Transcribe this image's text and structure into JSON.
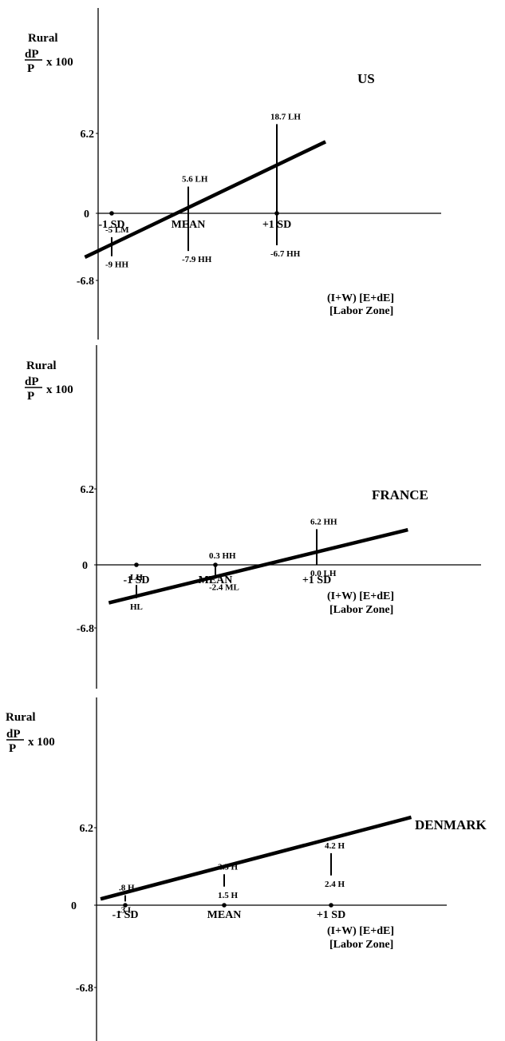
{
  "y_label": {
    "line1": "Rural",
    "numerator": "dP",
    "denominator": "P",
    "suffix": "x 100"
  },
  "x_label": {
    "line1": "(I+W) [E+dE]",
    "line2": "[Labor Zone]"
  },
  "chart_data": [
    {
      "type": "line",
      "title": "US",
      "categories": [
        "-1 SD",
        "MEAN",
        "+1 SD"
      ],
      "y_ticks": [
        "6.2",
        "0",
        "-6.8"
      ],
      "ylim": [
        -12,
        22
      ],
      "regression_line": {
        "x": [
          -1.35,
          1.55
        ],
        "y": [
          -9.2,
          15.0
        ]
      },
      "points": [
        {
          "x": -1,
          "y": 0
        },
        {
          "x": 1,
          "y": 0
        }
      ],
      "ranges": [
        {
          "x": -1,
          "high": -5,
          "low": -9,
          "high_label": "-5 LM",
          "low_label": "-9 HH"
        },
        {
          "x": 0,
          "high": 5.6,
          "low": -7.9,
          "high_label": "5.6 LH",
          "low_label": "-7.9 HH"
        },
        {
          "x": 1,
          "high": 18.7,
          "low": -6.7,
          "high_label": "18.7 LH",
          "low_label": "-6.7 HH"
        }
      ]
    },
    {
      "type": "line",
      "title": "FRANCE",
      "categories": [
        "-1 SD",
        "MEAN",
        "+1 SD"
      ],
      "y_ticks": [
        "6.2",
        "0",
        "-6.8"
      ],
      "regression_line": {
        "x": [
          -1.35,
          1.9
        ],
        "y": [
          -6.6,
          6.1
        ]
      },
      "points": [
        {
          "x": -1,
          "y": 0
        },
        {
          "x": 0,
          "y": 0
        }
      ],
      "ranges": [
        {
          "x": -1,
          "high": -3.5,
          "low": -5.8,
          "high_label": "LH",
          "low_label": "HL"
        },
        {
          "x": 0,
          "high": 0.3,
          "low": -2.4,
          "high_label": "0.3 HH",
          "low_label": "-2.4 ML"
        },
        {
          "x": 1,
          "high": 6.2,
          "low": 0,
          "high_label": "6.2 HH",
          "low_label": "0.0 LH"
        }
      ]
    },
    {
      "type": "line",
      "title": "DENMARK",
      "categories": [
        "-1 SD",
        "MEAN",
        "+1 SD"
      ],
      "y_ticks": [
        "6.2",
        "0",
        "-6.8"
      ],
      "regression_line": {
        "x": [
          -1.25,
          1.75
        ],
        "y": [
          0.5,
          7.1
        ]
      },
      "points": [
        {
          "x": -1,
          "y": 0
        },
        {
          "x": 0,
          "y": 0
        },
        {
          "x": 1,
          "y": 0
        }
      ],
      "ranges": [
        {
          "x": -1,
          "high": 0.8,
          "low": 0.3,
          "high_label": ".8 H",
          "low_label": ".3 L"
        },
        {
          "x": 0,
          "high": 2.5,
          "low": 1.5,
          "high_label": "2.5 H",
          "low_label": "1.5 H"
        },
        {
          "x": 1,
          "high": 4.2,
          "low": 2.4,
          "high_label": "4.2 H",
          "low_label": "2.4 H"
        }
      ]
    }
  ]
}
